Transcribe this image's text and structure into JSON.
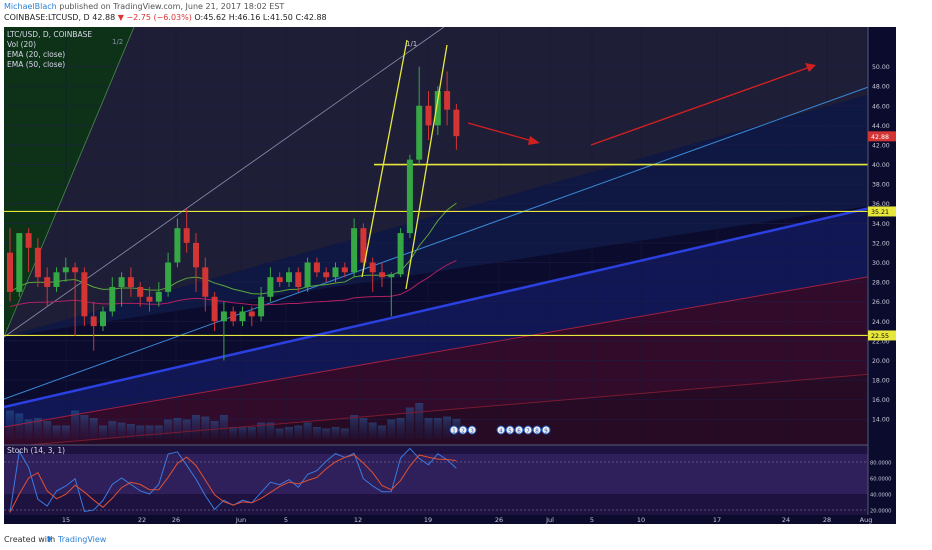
{
  "header": {
    "author": "MichaelBlach",
    "published": "published on TradingView.com, June 21, 2017 18:02 EST",
    "symbol": "COINBASE:LTCUSD, D",
    "last": "42.88",
    "change": "−2.75 (−6.03%)",
    "ohlc": "O:45.62 H:46.16 L:41.50 C:42.88"
  },
  "footer": {
    "created_with": "Created with",
    "brand": "TradingView"
  },
  "colors": {
    "up": "#35a845",
    "down": "#d33535",
    "support": "#e8e83c",
    "trend_blue": "#2b60d8",
    "arrow": "#d02020",
    "background": "#0b0b2e"
  },
  "chart_data": [
    {
      "type": "candlestick",
      "title": "LTC/USD, D, COINBASE",
      "legend": [
        "Vol (20)",
        "EMA (20, close)",
        "EMA (50, close)"
      ],
      "x_tick_labels": [
        "15",
        "22",
        "26",
        "Jun",
        "5",
        "12",
        "19",
        "26",
        "Jul",
        "5",
        "10",
        "17",
        "24",
        "28",
        "Aug"
      ],
      "y_tick_labels": [
        "50.00",
        "48.00",
        "46.00",
        "44.00",
        "42.00",
        "40.00",
        "38.00",
        "36.00",
        "34.00",
        "32.00",
        "30.00",
        "28.00",
        "26.00",
        "24.00",
        "22.00",
        "20.00",
        "18.00",
        "16.00",
        "14.00"
      ],
      "ylim": [
        13,
        52
      ],
      "price_labels": [
        "42.88",
        "35.21",
        "22.55"
      ],
      "horizontal_levels": [
        40.0,
        35.21,
        22.55
      ],
      "fan_labels": [
        "1/2",
        "1/1"
      ],
      "event_markers": [
        "1",
        "2",
        "3",
        "4",
        "5",
        "6",
        "7",
        "8",
        "9"
      ],
      "candles_ohlc": [
        [
          31.0,
          33.5,
          26.0,
          27.0
        ],
        [
          27.0,
          33.0,
          26.5,
          33.0
        ],
        [
          33.0,
          33.5,
          29.0,
          31.5
        ],
        [
          31.5,
          32.5,
          27.5,
          28.5
        ],
        [
          28.5,
          29.5,
          25.5,
          27.5
        ],
        [
          27.5,
          29.5,
          27.0,
          29.0
        ],
        [
          29.0,
          30.5,
          28.0,
          29.5
        ],
        [
          29.5,
          30.0,
          22.5,
          29.0
        ],
        [
          29.0,
          29.5,
          23.5,
          24.5
        ],
        [
          24.5,
          26.0,
          21.0,
          23.5
        ],
        [
          23.5,
          25.5,
          23.0,
          25.0
        ],
        [
          25.0,
          28.5,
          24.5,
          27.5
        ],
        [
          27.5,
          29.0,
          25.5,
          28.5
        ],
        [
          28.5,
          29.5,
          26.5,
          27.5
        ],
        [
          27.5,
          28.0,
          25.5,
          26.5
        ],
        [
          26.5,
          27.5,
          25.0,
          26.0
        ],
        [
          26.0,
          28.0,
          25.5,
          27.0
        ],
        [
          27.0,
          31.0,
          26.5,
          30.0
        ],
        [
          30.0,
          34.5,
          29.5,
          33.5
        ],
        [
          33.5,
          35.5,
          31.0,
          32.0
        ],
        [
          32.0,
          33.0,
          27.0,
          29.5
        ],
        [
          29.5,
          30.5,
          25.0,
          26.5
        ],
        [
          26.5,
          27.0,
          23.0,
          24.0
        ],
        [
          24.0,
          26.0,
          20.0,
          25.0
        ],
        [
          25.0,
          25.5,
          23.5,
          24.0
        ],
        [
          24.0,
          25.5,
          23.5,
          25.0
        ],
        [
          25.0,
          25.5,
          23.5,
          24.5
        ],
        [
          24.5,
          27.5,
          24.0,
          26.5
        ],
        [
          26.5,
          29.5,
          26.0,
          28.5
        ],
        [
          28.5,
          29.0,
          27.5,
          28.0
        ],
        [
          28.0,
          29.5,
          27.5,
          29.0
        ],
        [
          29.0,
          29.5,
          27.0,
          27.5
        ],
        [
          27.5,
          30.5,
          27.0,
          30.0
        ],
        [
          30.0,
          30.5,
          28.5,
          29.0
        ],
        [
          29.0,
          29.5,
          28.0,
          28.5
        ],
        [
          28.5,
          30.0,
          28.0,
          29.5
        ],
        [
          29.5,
          30.0,
          28.5,
          29.0
        ],
        [
          29.0,
          34.5,
          28.5,
          33.5
        ],
        [
          33.5,
          34.0,
          29.0,
          30.0
        ],
        [
          30.0,
          30.5,
          27.0,
          29.0
        ],
        [
          29.0,
          30.0,
          27.5,
          28.5
        ],
        [
          28.5,
          29.0,
          24.5,
          28.8
        ],
        [
          28.8,
          33.5,
          28.5,
          33.0
        ],
        [
          33.0,
          41.0,
          32.5,
          40.5
        ],
        [
          40.5,
          50.0,
          40.0,
          46.0
        ],
        [
          46.0,
          47.5,
          42.5,
          44.0
        ],
        [
          44.0,
          48.0,
          43.0,
          47.5
        ],
        [
          47.5,
          49.5,
          44.0,
          45.6
        ],
        [
          45.6,
          46.2,
          41.5,
          42.9
        ]
      ]
    },
    {
      "type": "line",
      "title": "Stoch (14, 3, 1)",
      "y_tick_labels": [
        "80.0000",
        "60.0000",
        "40.0000",
        "20.0000"
      ],
      "ylim": [
        15,
        100
      ]
    }
  ]
}
